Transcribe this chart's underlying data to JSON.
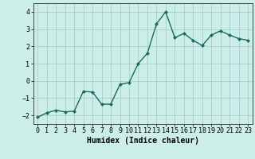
{
  "x": [
    0,
    1,
    2,
    3,
    4,
    5,
    6,
    7,
    8,
    9,
    10,
    11,
    12,
    13,
    14,
    15,
    16,
    17,
    18,
    19,
    20,
    21,
    22,
    23
  ],
  "y": [
    -2.1,
    -1.85,
    -1.7,
    -1.8,
    -1.75,
    -0.6,
    -0.65,
    -1.35,
    -1.35,
    -0.2,
    -0.1,
    1.0,
    1.6,
    3.3,
    4.0,
    2.5,
    2.75,
    2.35,
    2.05,
    2.65,
    2.9,
    2.65,
    2.45,
    2.35
  ],
  "line_color": "#1a6b5a",
  "marker": "D",
  "marker_size": 2,
  "bg_color": "#cceee8",
  "grid_color": "#aacccc",
  "xlabel": "Humidex (Indice chaleur)",
  "ylim": [
    -2.5,
    4.5
  ],
  "xlim": [
    -0.5,
    23.5
  ],
  "yticks": [
    -2,
    -1,
    0,
    1,
    2,
    3,
    4
  ],
  "xtick_labels": [
    "0",
    "1",
    "2",
    "3",
    "4",
    "5",
    "6",
    "7",
    "8",
    "9",
    "10",
    "11",
    "12",
    "13",
    "14",
    "15",
    "16",
    "17",
    "18",
    "19",
    "20",
    "21",
    "22",
    "23"
  ],
  "tick_fontsize": 6,
  "xlabel_fontsize": 7,
  "line_width": 1.0
}
